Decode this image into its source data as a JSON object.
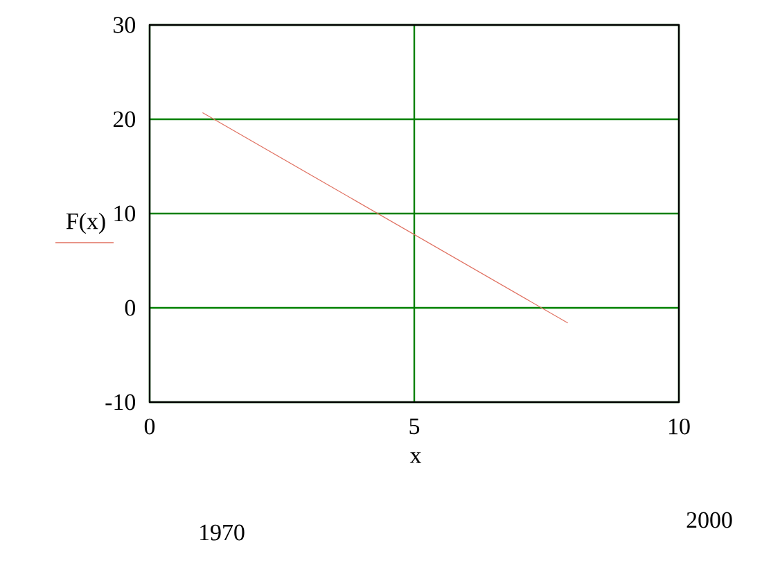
{
  "chart_data": {
    "type": "line",
    "xlabel": "x",
    "ylabel": "F(x)",
    "x": [
      1,
      7.9
    ],
    "series": [
      {
        "color": "#e07060",
        "values": [
          20.7,
          -1.6
        ]
      }
    ],
    "xlim": [
      0,
      10
    ],
    "ylim": [
      -10,
      30
    ],
    "xticks": [
      0,
      5,
      10
    ],
    "yticks": [
      -10,
      0,
      10,
      20,
      30
    ],
    "grid": true,
    "annotations": [
      "1970",
      "2000"
    ]
  }
}
